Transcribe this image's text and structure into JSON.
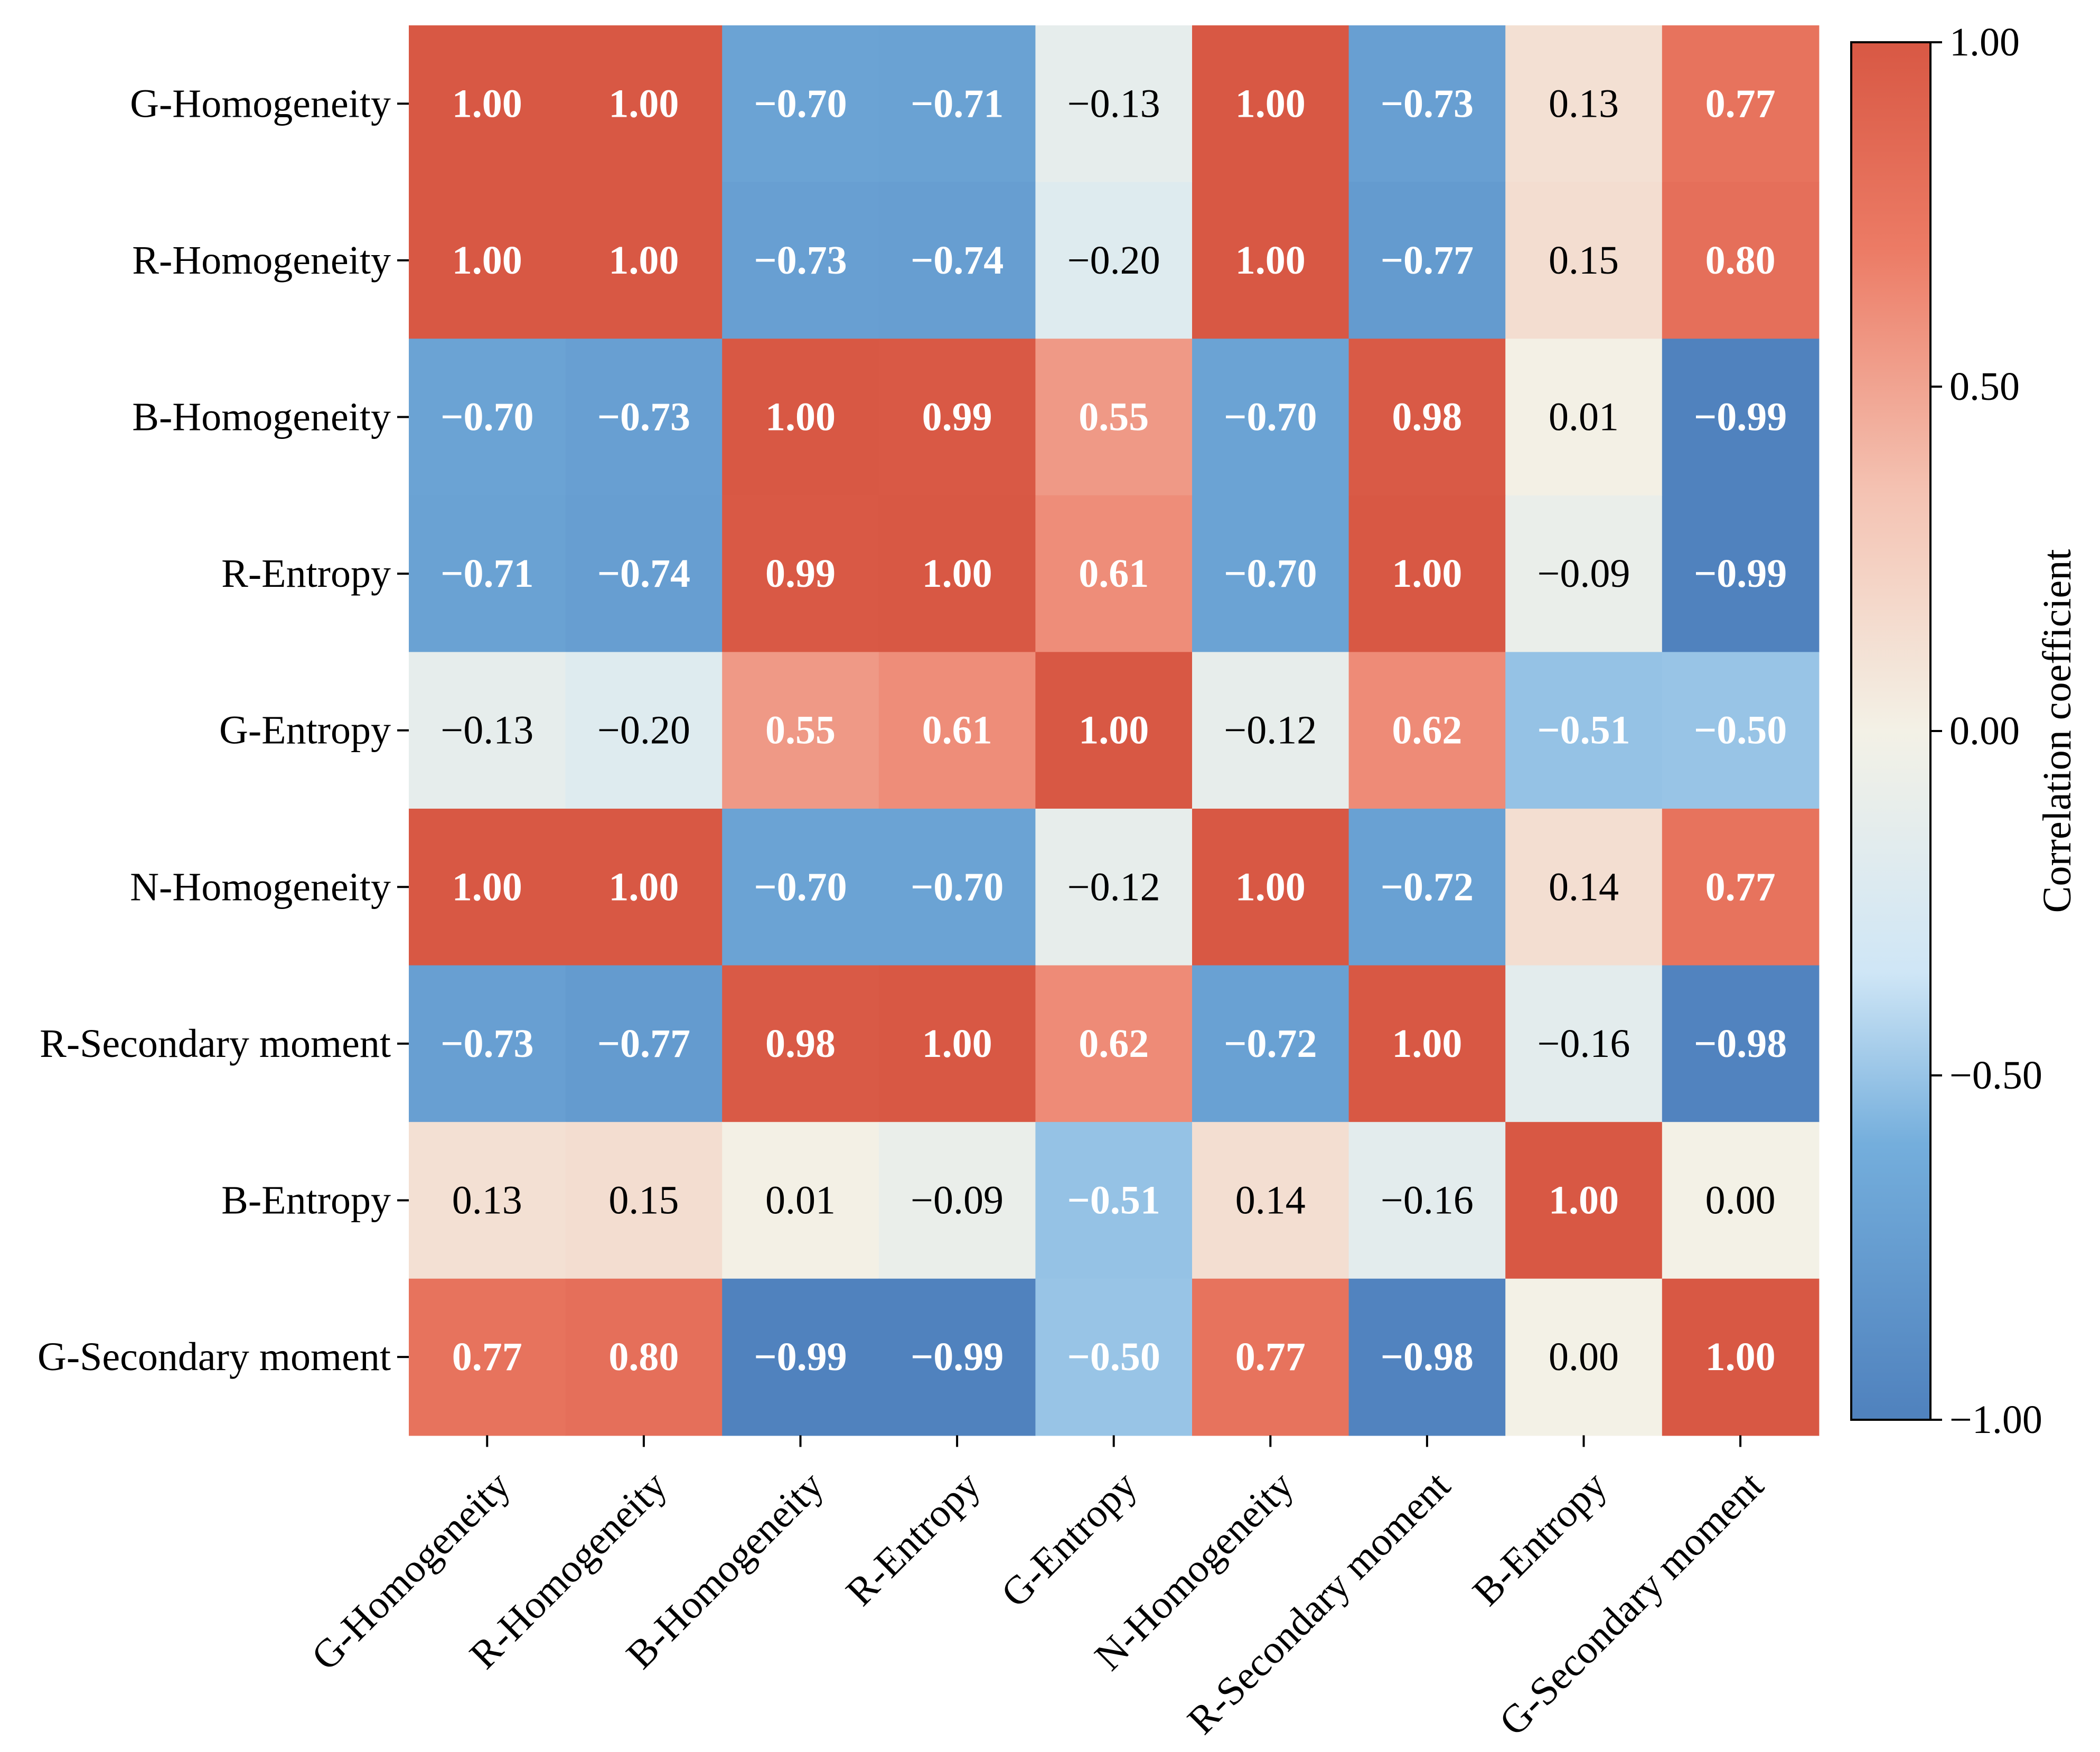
{
  "chart_data": {
    "type": "heatmap",
    "title": "",
    "xlabel": "",
    "ylabel": "",
    "rows": [
      "G-Homogeneity",
      "R-Homogeneity",
      "B-Homogeneity",
      "R-Entropy",
      "G-Entropy",
      "N-Homogeneity",
      "R-Secondary moment",
      "B-Entropy",
      "G-Secondary moment"
    ],
    "columns": [
      "G-Homogeneity",
      "R-Homogeneity",
      "B-Homogeneity",
      "R-Entropy",
      "G-Entropy",
      "N-Homogeneity",
      "R-Secondary moment",
      "B-Entropy",
      "G-Secondary moment"
    ],
    "values": [
      [
        1.0,
        1.0,
        -0.7,
        -0.71,
        -0.13,
        1.0,
        -0.73,
        0.13,
        0.77
      ],
      [
        1.0,
        1.0,
        -0.73,
        -0.74,
        -0.2,
        1.0,
        -0.77,
        0.15,
        0.8
      ],
      [
        -0.7,
        -0.73,
        1.0,
        0.99,
        0.55,
        -0.7,
        0.98,
        0.01,
        -0.99
      ],
      [
        -0.71,
        -0.74,
        0.99,
        1.0,
        0.61,
        -0.7,
        1.0,
        -0.09,
        -0.99
      ],
      [
        -0.13,
        -0.2,
        0.55,
        0.61,
        1.0,
        -0.12,
        0.62,
        -0.51,
        -0.5
      ],
      [
        1.0,
        1.0,
        -0.7,
        -0.7,
        -0.12,
        1.0,
        -0.72,
        0.14,
        0.77
      ],
      [
        -0.73,
        -0.77,
        0.98,
        1.0,
        0.62,
        -0.72,
        1.0,
        -0.16,
        -0.98
      ],
      [
        0.13,
        0.15,
        0.01,
        -0.09,
        -0.51,
        0.14,
        -0.16,
        1.0,
        0.0
      ],
      [
        0.77,
        0.8,
        -0.99,
        -0.99,
        -0.5,
        0.77,
        -0.98,
        0.0,
        1.0
      ]
    ],
    "labels": [
      [
        "1.00",
        "1.00",
        "−0.70",
        "−0.71",
        "−0.13",
        "1.00",
        "−0.73",
        "0.13",
        "0.77"
      ],
      [
        "1.00",
        "1.00",
        "−0.73",
        "−0.74",
        "−0.20",
        "1.00",
        "−0.77",
        "0.15",
        "0.80"
      ],
      [
        "−0.70",
        "−0.73",
        "1.00",
        "0.99",
        "0.55",
        "−0.70",
        "0.98",
        "0.01",
        "−0.99"
      ],
      [
        "−0.71",
        "−0.74",
        "0.99",
        "1.00",
        "0.61",
        "−0.70",
        "1.00",
        "−0.09",
        "−0.99"
      ],
      [
        "−0.13",
        "−0.20",
        "0.55",
        "0.61",
        "1.00",
        "−0.12",
        "0.62",
        "−0.51",
        "−0.50"
      ],
      [
        "1.00",
        "1.00",
        "−0.70",
        "−0.70",
        "−0.12",
        "1.00",
        "−0.72",
        "0.14",
        "0.77"
      ],
      [
        "−0.73",
        "−0.77",
        "0.98",
        "1.00",
        "0.62",
        "−0.72",
        "1.00",
        "−0.16",
        "−0.98"
      ],
      [
        "0.13",
        "0.15",
        "0.01",
        "−0.09",
        "−0.51",
        "0.14",
        "−0.16",
        "1.00",
        "0.00"
      ],
      [
        "0.77",
        "0.80",
        "−0.99",
        "−0.99",
        "−0.50",
        "0.77",
        "−0.98",
        "0.00",
        "1.00"
      ]
    ],
    "colorbar": {
      "label": "Correlation coefficient",
      "range": [
        -1.0,
        1.0
      ],
      "ticks": [
        1.0,
        0.5,
        0.0,
        -0.5,
        -1.0
      ],
      "tick_labels": [
        "1.00",
        "0.50",
        "0.00",
        "−0.50",
        "−1.00"
      ],
      "stops": [
        {
          "value": -1.0,
          "color": "#4f81bd"
        },
        {
          "value": -0.6,
          "color": "#74aedc"
        },
        {
          "value": -0.35,
          "color": "#cfe6f6"
        },
        {
          "value": 0.0,
          "color": "#f3f1e6"
        },
        {
          "value": 0.35,
          "color": "#f4c2b2"
        },
        {
          "value": 0.7,
          "color": "#ec7b65"
        },
        {
          "value": 1.0,
          "color": "#d85844"
        }
      ]
    }
  }
}
